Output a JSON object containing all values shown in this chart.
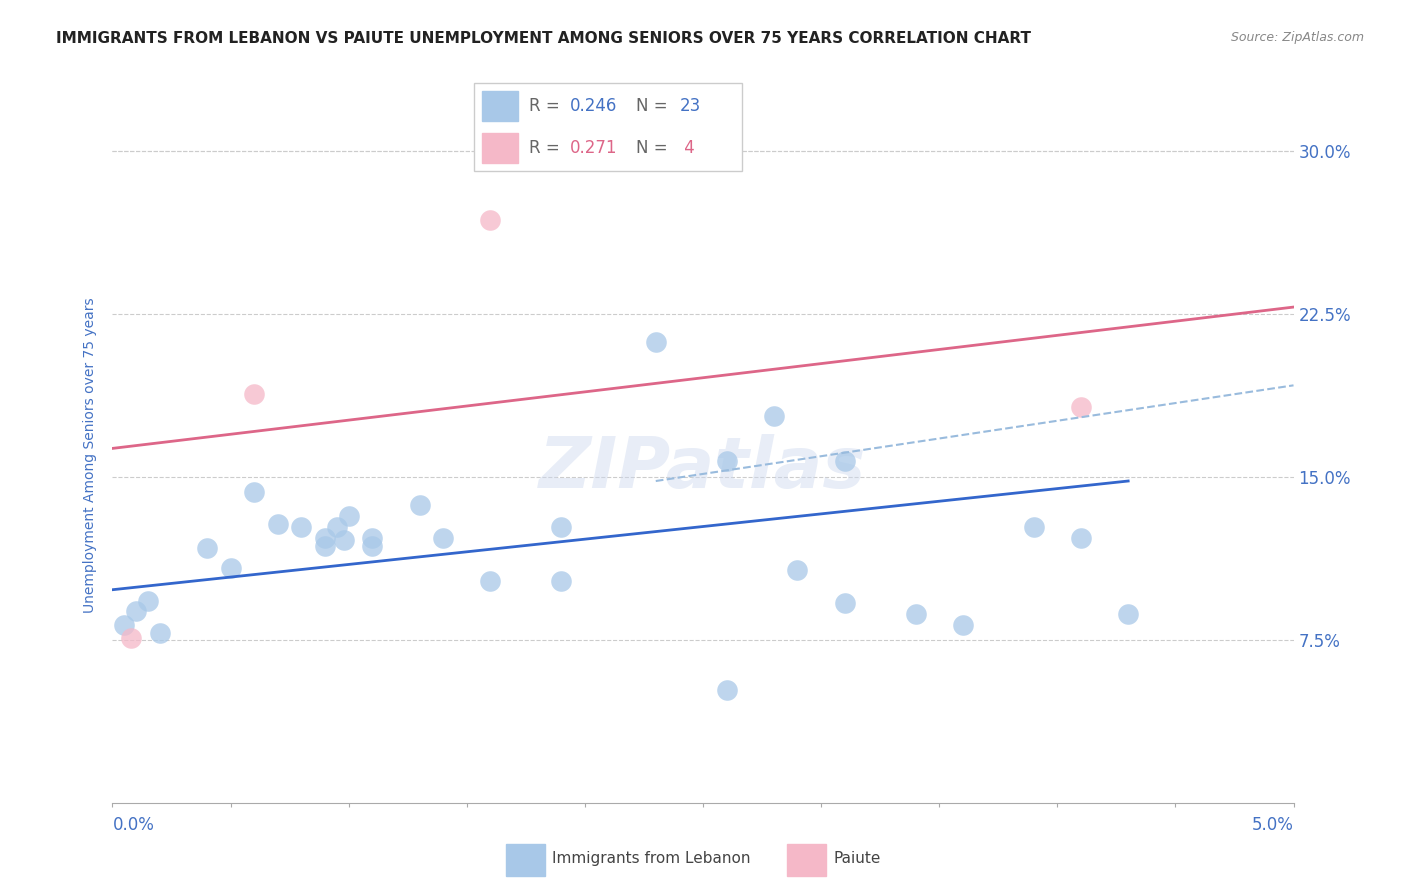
{
  "title": "IMMIGRANTS FROM LEBANON VS PAIUTE UNEMPLOYMENT AMONG SENIORS OVER 75 YEARS CORRELATION CHART",
  "source": "Source: ZipAtlas.com",
  "ylabel": "Unemployment Among Seniors over 75 years",
  "ytick_labels": [
    "7.5%",
    "15.0%",
    "22.5%",
    "30.0%"
  ],
  "ytick_vals": [
    0.075,
    0.15,
    0.225,
    0.3
  ],
  "xlim": [
    0.0,
    0.05
  ],
  "ylim": [
    0.0,
    0.32
  ],
  "blue_scatter_color": "#a8c8e8",
  "pink_scatter_color": "#f5b8c8",
  "blue_line_color": "#3366cc",
  "pink_line_color": "#dd6688",
  "dashed_line_color": "#99bbdd",
  "text_color": "#4472c4",
  "grid_color": "#cccccc",
  "watermark": "ZIPatlas",
  "lebanon_points": [
    [
      0.0005,
      0.082
    ],
    [
      0.001,
      0.088
    ],
    [
      0.0015,
      0.093
    ],
    [
      0.002,
      0.078
    ],
    [
      0.004,
      0.117
    ],
    [
      0.005,
      0.108
    ],
    [
      0.006,
      0.143
    ],
    [
      0.007,
      0.128
    ],
    [
      0.008,
      0.127
    ],
    [
      0.009,
      0.122
    ],
    [
      0.009,
      0.118
    ],
    [
      0.0095,
      0.127
    ],
    [
      0.0098,
      0.121
    ],
    [
      0.01,
      0.132
    ],
    [
      0.011,
      0.122
    ],
    [
      0.011,
      0.118
    ],
    [
      0.013,
      0.137
    ],
    [
      0.014,
      0.122
    ],
    [
      0.016,
      0.102
    ],
    [
      0.019,
      0.127
    ],
    [
      0.019,
      0.102
    ],
    [
      0.023,
      0.212
    ],
    [
      0.028,
      0.178
    ],
    [
      0.031,
      0.157
    ],
    [
      0.034,
      0.087
    ],
    [
      0.036,
      0.082
    ],
    [
      0.039,
      0.127
    ],
    [
      0.041,
      0.122
    ],
    [
      0.043,
      0.087
    ],
    [
      0.026,
      0.157
    ],
    [
      0.029,
      0.107
    ],
    [
      0.031,
      0.092
    ],
    [
      0.026,
      0.052
    ]
  ],
  "paiute_points": [
    [
      0.0008,
      0.076
    ],
    [
      0.006,
      0.188
    ],
    [
      0.016,
      0.268
    ],
    [
      0.041,
      0.182
    ]
  ],
  "blue_trend_x": [
    0.0,
    0.043
  ],
  "blue_trend_y": [
    0.098,
    0.148
  ],
  "pink_trend_x": [
    0.0,
    0.05
  ],
  "pink_trend_y": [
    0.163,
    0.228
  ],
  "dashed_trend_x": [
    0.023,
    0.05
  ],
  "dashed_trend_y": [
    0.148,
    0.192
  ]
}
